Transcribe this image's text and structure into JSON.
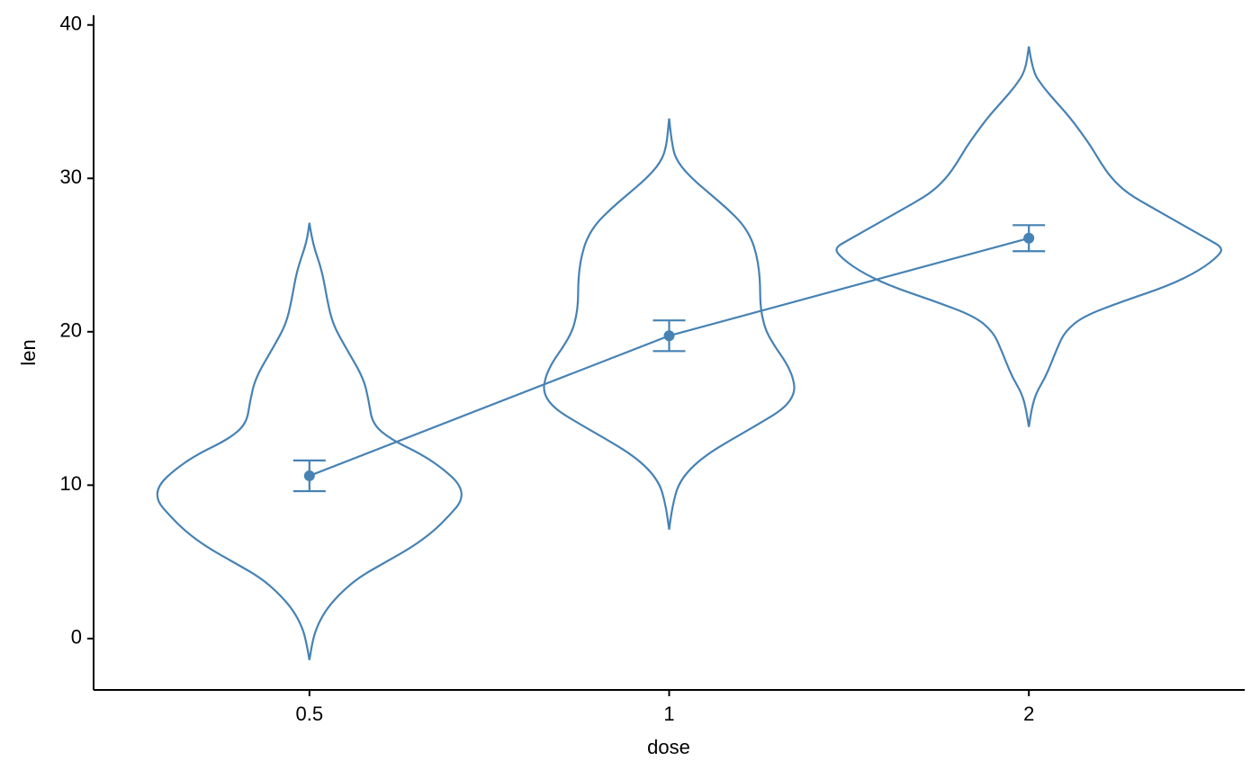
{
  "chart_data": {
    "type": "violin",
    "x_label": "dose",
    "y_label": "len",
    "categories": [
      "0.5",
      "1",
      "2"
    ],
    "ylim": [
      -3.35,
      40.63
    ],
    "yticks": [
      0,
      10,
      20,
      30,
      40
    ],
    "color": "#4682b4",
    "violins": [
      {
        "y": [
          27.1,
          25.8,
          24,
          22,
          20.5,
          19,
          17,
          15.5,
          14,
          13,
          12,
          11,
          10,
          9,
          8,
          7,
          6,
          5,
          4,
          3,
          2,
          1,
          0,
          -1.4
        ],
        "half_width": [
          0,
          0.008,
          0.035,
          0.05,
          0.065,
          0.1,
          0.15,
          0.165,
          0.175,
          0.225,
          0.313,
          0.375,
          0.42,
          0.425,
          0.388,
          0.345,
          0.288,
          0.213,
          0.138,
          0.088,
          0.05,
          0.025,
          0.01,
          0
        ]
      },
      {
        "y": [
          33.9,
          32,
          31,
          30,
          29,
          28,
          27,
          26,
          25,
          24,
          23,
          22,
          21,
          20,
          19,
          18,
          17,
          16,
          15,
          14,
          13,
          12,
          11,
          10,
          9,
          8,
          7.1
        ],
        "half_width": [
          0,
          0.008,
          0.025,
          0.063,
          0.113,
          0.163,
          0.205,
          0.23,
          0.243,
          0.25,
          0.253,
          0.253,
          0.258,
          0.27,
          0.295,
          0.325,
          0.345,
          0.35,
          0.32,
          0.25,
          0.175,
          0.105,
          0.055,
          0.025,
          0.013,
          0.005,
          0
        ]
      },
      {
        "y": [
          38.6,
          37,
          36,
          35,
          34,
          33,
          32,
          31,
          30,
          29,
          28,
          27,
          26,
          25.5,
          25,
          24,
          23,
          22,
          21,
          20,
          19,
          18,
          17,
          16,
          15,
          13.8
        ],
        "half_width": [
          0,
          0.01,
          0.038,
          0.075,
          0.113,
          0.145,
          0.175,
          0.2,
          0.23,
          0.275,
          0.35,
          0.425,
          0.5,
          0.538,
          0.53,
          0.475,
          0.388,
          0.263,
          0.15,
          0.1,
          0.08,
          0.063,
          0.045,
          0.02,
          0.008,
          0
        ]
      }
    ],
    "mean": {
      "values": [
        10.61,
        19.74,
        26.1
      ],
      "errors": [
        1.0,
        1.0,
        0.85
      ]
    }
  }
}
